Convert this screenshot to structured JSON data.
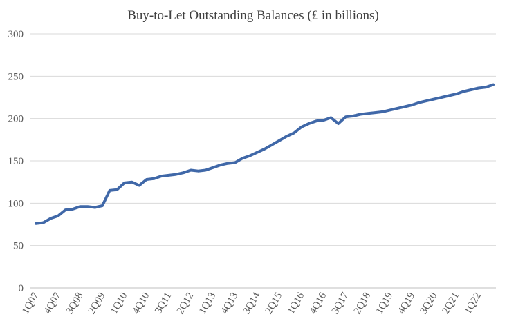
{
  "chart_data": {
    "type": "line",
    "title": "Buy-to-Let Outstanding Balances (£ in billions)",
    "xlabel": "",
    "ylabel": "",
    "ylim": [
      0,
      300
    ],
    "yticks": [
      0,
      50,
      100,
      150,
      200,
      250,
      300
    ],
    "grid": true,
    "legend": "none",
    "tick_labels": [
      "1Q07",
      "4Q07",
      "3Q08",
      "2Q09",
      "1Q10",
      "4Q10",
      "3Q11",
      "2Q12",
      "1Q13",
      "4Q13",
      "3Q14",
      "2Q15",
      "1Q16",
      "4Q16",
      "3Q17",
      "2Q18",
      "1Q19",
      "4Q19",
      "3Q20",
      "2Q21",
      "1Q22"
    ],
    "tick_every": 3,
    "x": [
      "1Q07",
      "2Q07",
      "3Q07",
      "4Q07",
      "1Q08",
      "2Q08",
      "3Q08",
      "4Q08",
      "1Q09",
      "2Q09",
      "3Q09",
      "4Q09",
      "1Q10",
      "2Q10",
      "3Q10",
      "4Q10",
      "1Q11",
      "2Q11",
      "3Q11",
      "4Q11",
      "1Q12",
      "2Q12",
      "3Q12",
      "4Q12",
      "1Q13",
      "2Q13",
      "3Q13",
      "4Q13",
      "1Q14",
      "2Q14",
      "3Q14",
      "4Q14",
      "1Q15",
      "2Q15",
      "3Q15",
      "4Q15",
      "1Q16",
      "2Q16",
      "3Q16",
      "4Q16",
      "1Q17",
      "2Q17",
      "3Q17",
      "4Q17",
      "1Q18",
      "2Q18",
      "3Q18",
      "4Q18",
      "1Q19",
      "2Q19",
      "3Q19",
      "4Q19",
      "1Q20",
      "2Q20",
      "3Q20",
      "4Q20",
      "1Q21",
      "2Q21",
      "3Q21",
      "4Q21",
      "1Q22",
      "2Q22",
      "3Q22"
    ],
    "series": [
      {
        "name": "Buy-to-Let Outstanding Balances",
        "color": "#4068a8",
        "values": [
          76,
          77,
          82,
          85,
          92,
          93,
          96,
          96,
          95,
          97,
          115,
          116,
          124,
          125,
          121,
          128,
          129,
          132,
          133,
          134,
          136,
          139,
          138,
          139,
          142,
          145,
          147,
          148,
          153,
          156,
          160,
          164,
          169,
          174,
          179,
          183,
          190,
          194,
          197,
          198,
          201,
          194,
          202,
          203,
          205,
          206,
          207,
          208,
          210,
          212,
          214,
          216,
          219,
          221,
          223,
          225,
          227,
          229,
          232,
          234,
          236,
          237,
          240
        ]
      }
    ]
  }
}
